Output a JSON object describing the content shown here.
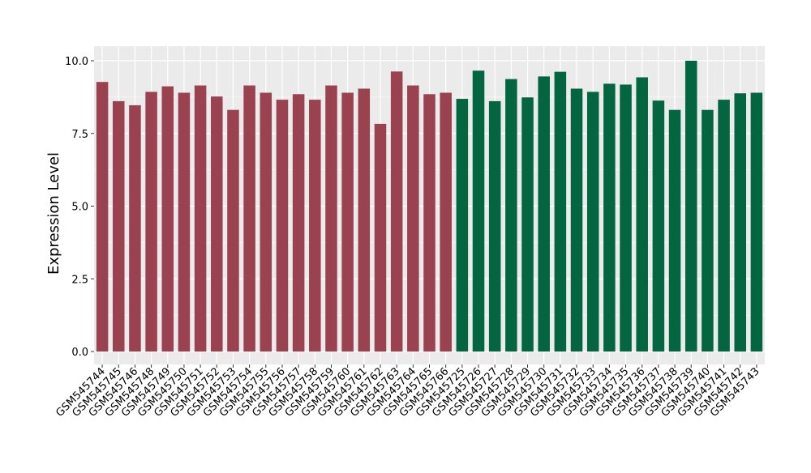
{
  "chart_data": {
    "type": "bar",
    "ylabel": "Expression Level",
    "xlabel": "",
    "ylim": [
      0,
      10.5
    ],
    "yticks": [
      "0.0",
      "2.5",
      "5.0",
      "7.5",
      "10.0"
    ],
    "grid": true,
    "background": "#EBEBEB",
    "gridline_color": "#FFFFFF",
    "categories": [
      "GSM545744",
      "GSM545745",
      "GSM545746",
      "GSM545748",
      "GSM545749",
      "GSM545750",
      "GSM545751",
      "GSM545752",
      "GSM545753",
      "GSM545754",
      "GSM545755",
      "GSM545756",
      "GSM545757",
      "GSM545758",
      "GSM545759",
      "GSM545760",
      "GSM545761",
      "GSM545762",
      "GSM545763",
      "GSM545764",
      "GSM545765",
      "GSM545766",
      "GSM545725",
      "GSM545726",
      "GSM545727",
      "GSM545728",
      "GSM545729",
      "GSM545730",
      "GSM545731",
      "GSM545732",
      "GSM545733",
      "GSM545734",
      "GSM545735",
      "GSM545736",
      "GSM545737",
      "GSM545738",
      "GSM545739",
      "GSM545740",
      "GSM545741",
      "GSM545742",
      "GSM545743"
    ],
    "values": [
      9.27,
      8.61,
      8.47,
      8.93,
      9.12,
      8.9,
      9.15,
      8.77,
      8.31,
      9.15,
      8.9,
      8.66,
      8.85,
      8.66,
      9.15,
      8.9,
      9.04,
      7.83,
      9.63,
      9.15,
      8.85,
      8.9,
      8.69,
      9.66,
      8.61,
      9.37,
      8.74,
      9.46,
      9.62,
      9.04,
      8.93,
      9.21,
      9.18,
      9.43,
      8.63,
      8.31,
      10.0,
      8.31,
      8.66,
      8.88,
      8.9
    ],
    "group_sizes": [
      22,
      19
    ],
    "group_colors": [
      "#9A4250",
      "#036641"
    ]
  }
}
